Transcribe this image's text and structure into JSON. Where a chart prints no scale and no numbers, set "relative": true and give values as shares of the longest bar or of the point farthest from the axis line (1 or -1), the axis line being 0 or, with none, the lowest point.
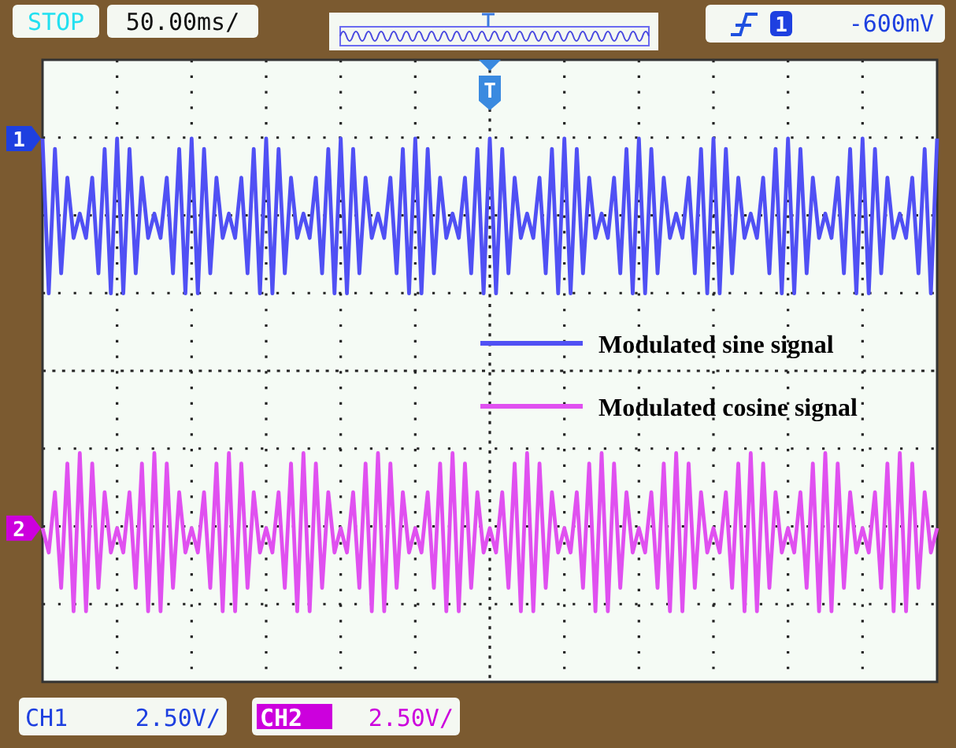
{
  "chart_data": {
    "type": "line",
    "relative": true,
    "grid": true,
    "legend": "right",
    "marker": "none",
    "line_style": "solid",
    "categories": [
      null,
      null,
      null,
      null,
      null,
      null,
      null,
      null,
      null,
      null,
      null,
      null,
      null,
      null,
      null,
      null,
      null,
      null,
      null,
      null,
      null,
      null,
      null,
      null,
      null,
      null,
      null,
      null,
      null,
      null,
      null,
      null,
      null,
      null,
      null,
      null,
      null,
      null,
      null,
      null,
      null,
      null,
      null,
      null,
      null,
      null,
      null,
      null,
      null,
      null,
      null,
      null,
      null,
      null,
      null,
      null,
      null,
      null,
      null,
      null,
      null,
      null,
      null,
      null,
      null,
      null,
      null,
      null,
      null,
      null,
      null,
      null,
      null,
      null,
      null,
      null,
      null,
      null,
      null,
      null,
      null,
      null,
      null,
      null,
      null,
      null,
      null,
      null,
      null,
      null,
      null,
      null,
      null,
      null,
      null,
      null,
      null,
      null,
      null,
      null,
      null,
      null,
      null,
      null,
      null,
      null,
      null,
      null,
      null,
      null,
      null,
      null,
      null,
      null,
      null,
      null,
      null,
      null,
      null,
      null,
      null,
      null,
      null,
      null,
      null,
      null,
      null,
      null,
      null,
      null,
      null,
      null,
      null,
      null,
      null,
      null,
      null,
      null,
      null,
      null,
      null,
      null,
      null,
      null,
      null
    ],
    "series": [
      {
        "name": "Modulated sine signal",
        "color": "#5050f4",
        "values": [
          1.0,
          0.715,
          0.981,
          0.752,
          0.928,
          0.817,
          0.862,
          0.817,
          0.928,
          0.752,
          0.981,
          0.715,
          1.0,
          0.715,
          0.981,
          0.752,
          0.928,
          0.817,
          0.862,
          0.817,
          0.928,
          0.752,
          0.981,
          0.715,
          1.0,
          0.715,
          0.981,
          0.752,
          0.928,
          0.817,
          0.862,
          0.817,
          0.928,
          0.752,
          0.981,
          0.715,
          1.0,
          0.715,
          0.981,
          0.752,
          0.928,
          0.817,
          0.862,
          0.817,
          0.928,
          0.752,
          0.981,
          0.715,
          1.0,
          0.715,
          0.981,
          0.752,
          0.928,
          0.817,
          0.862,
          0.817,
          0.928,
          0.752,
          0.981,
          0.715,
          1.0,
          0.715,
          0.981,
          0.752,
          0.928,
          0.817,
          0.862,
          0.817,
          0.928,
          0.752,
          0.981,
          0.715,
          1.0,
          0.715,
          0.981,
          0.752,
          0.928,
          0.817,
          0.862,
          0.817,
          0.928,
          0.752,
          0.981,
          0.715,
          1.0,
          0.715,
          0.981,
          0.752,
          0.928,
          0.817,
          0.862,
          0.817,
          0.928,
          0.752,
          0.981,
          0.715,
          1.0,
          0.715,
          0.981,
          0.752,
          0.928,
          0.817,
          0.862,
          0.817,
          0.928,
          0.752,
          0.981,
          0.715,
          1.0,
          0.715,
          0.981,
          0.752,
          0.928,
          0.817,
          0.862,
          0.817,
          0.928,
          0.752,
          0.981,
          0.715,
          1.0,
          0.715,
          0.981,
          0.752,
          0.928,
          0.817,
          0.862,
          0.817,
          0.928,
          0.752,
          0.981,
          0.715,
          1.0,
          0.715,
          0.981,
          0.752,
          0.928,
          0.817,
          0.862,
          0.817,
          0.928,
          0.752,
          0.981,
          0.715,
          1.0
        ]
      },
      {
        "name": "Modulated cosine signal",
        "color": "#e050f0",
        "values": [
          0.283,
          0.238,
          0.349,
          0.173,
          0.402,
          0.13,
          0.421,
          0.13,
          0.402,
          0.173,
          0.349,
          0.238,
          0.283,
          0.238,
          0.349,
          0.173,
          0.402,
          0.13,
          0.421,
          0.13,
          0.402,
          0.173,
          0.349,
          0.238,
          0.283,
          0.238,
          0.349,
          0.173,
          0.402,
          0.13,
          0.421,
          0.13,
          0.402,
          0.173,
          0.349,
          0.238,
          0.283,
          0.238,
          0.349,
          0.173,
          0.402,
          0.13,
          0.421,
          0.13,
          0.402,
          0.173,
          0.349,
          0.238,
          0.283,
          0.238,
          0.349,
          0.173,
          0.402,
          0.13,
          0.421,
          0.13,
          0.402,
          0.173,
          0.349,
          0.238,
          0.283,
          0.238,
          0.349,
          0.173,
          0.402,
          0.13,
          0.421,
          0.13,
          0.402,
          0.173,
          0.349,
          0.238,
          0.283,
          0.238,
          0.349,
          0.173,
          0.402,
          0.13,
          0.421,
          0.13,
          0.402,
          0.173,
          0.349,
          0.238,
          0.283,
          0.238,
          0.349,
          0.173,
          0.402,
          0.13,
          0.421,
          0.13,
          0.402,
          0.173,
          0.349,
          0.238,
          0.283,
          0.238,
          0.349,
          0.173,
          0.402,
          0.13,
          0.421,
          0.13,
          0.402,
          0.173,
          0.349,
          0.238,
          0.283,
          0.238,
          0.349,
          0.173,
          0.402,
          0.13,
          0.421,
          0.13,
          0.402,
          0.173,
          0.349,
          0.238,
          0.283,
          0.238,
          0.349,
          0.173,
          0.402,
          0.13,
          0.421,
          0.13,
          0.402,
          0.173,
          0.349,
          0.238,
          0.283,
          0.238,
          0.349,
          0.173,
          0.402,
          0.13,
          0.421,
          0.13,
          0.402,
          0.173,
          0.349,
          0.238,
          0.283
        ]
      }
    ],
    "annotations": [
      "STOP",
      "50.00ms/",
      "1",
      "-600mV",
      "CH1",
      "2.50V/",
      "CH2",
      "2.50V/",
      "1",
      "2",
      "T"
    ]
  }
}
